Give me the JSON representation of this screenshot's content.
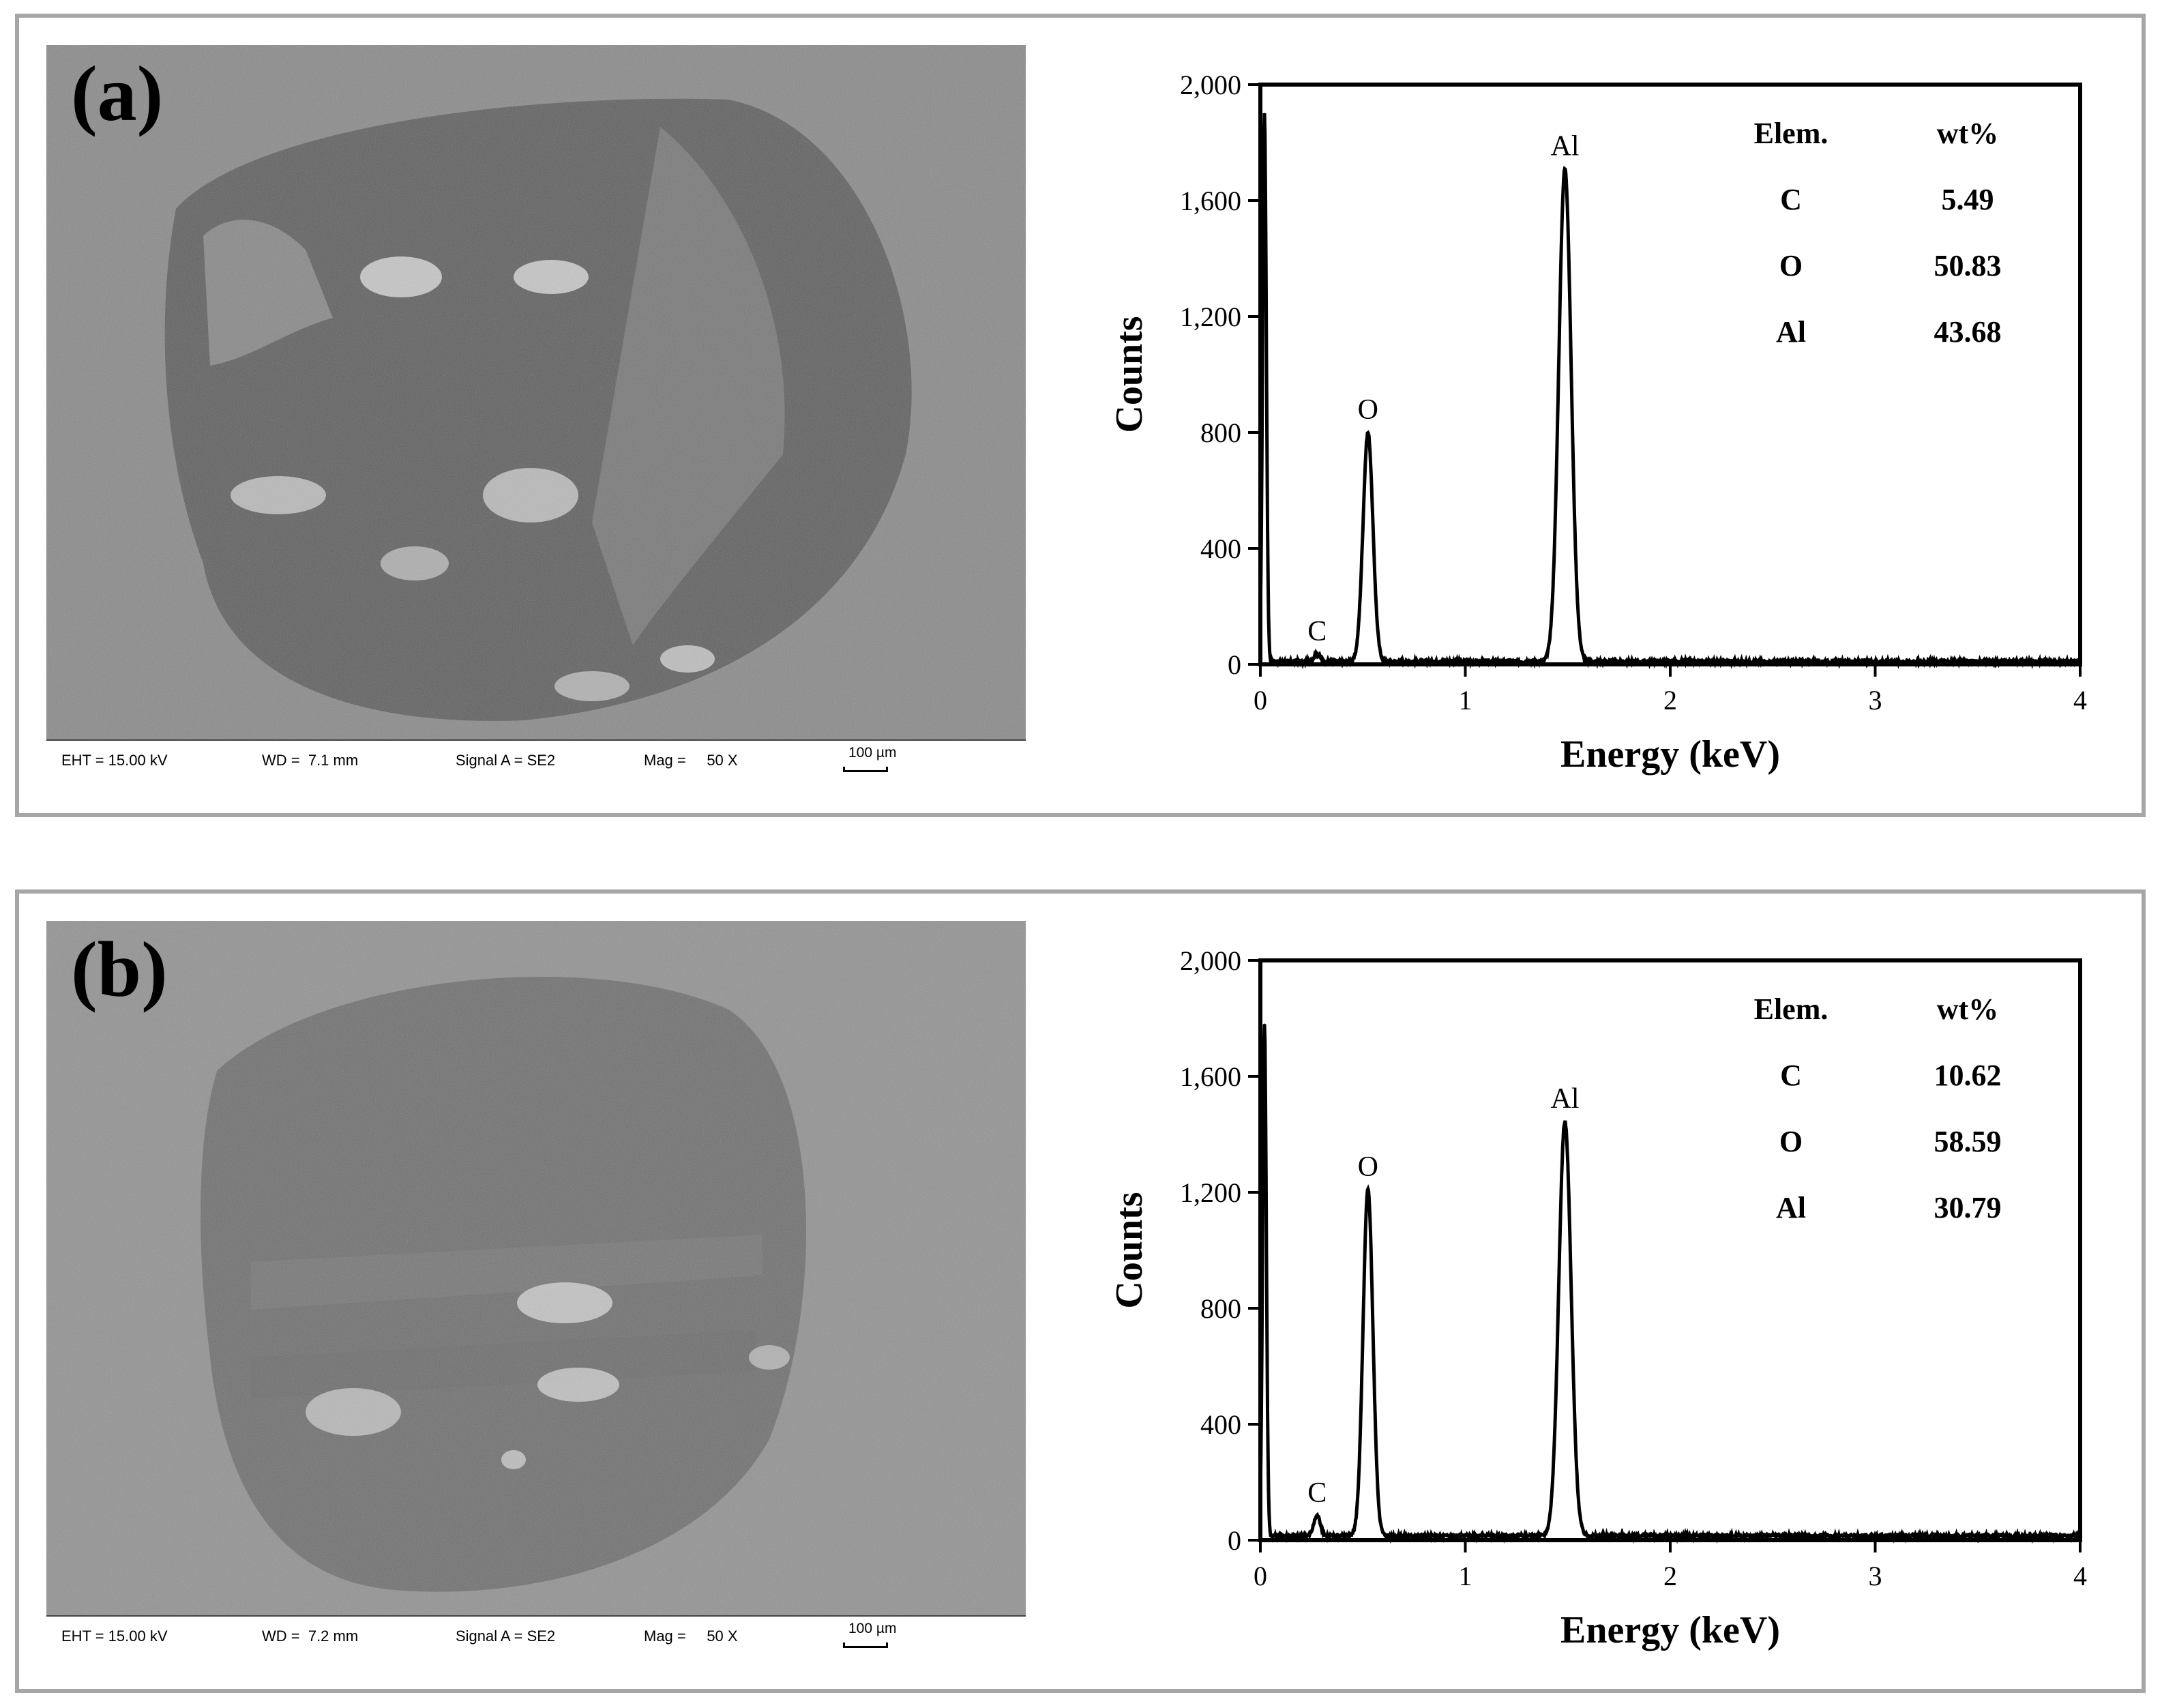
{
  "panels": [
    {
      "label": "(a)",
      "sem": {
        "eht": "EHT = 15.00 kV",
        "wd": "WD =  7.1 mm",
        "signal": "Signal A = SE2",
        "mag": "Mag =     50 X",
        "scale": "100 µm"
      }
    },
    {
      "label": "(b)",
      "sem": {
        "eht": "EHT = 15.00 kV",
        "wd": "WD =  7.2 mm",
        "signal": "Signal A = SE2",
        "mag": "Mag =     50 X",
        "scale": "100 µm"
      }
    }
  ],
  "chart_data": [
    {
      "type": "line",
      "xlabel": "Energy (keV)",
      "ylabel": "Counts",
      "xlim": [
        0,
        4
      ],
      "ylim": [
        0,
        2000
      ],
      "xticks": [
        0,
        1,
        2,
        3,
        4
      ],
      "yticks": [
        0,
        400,
        800,
        1200,
        1600,
        2000
      ],
      "ytick_labels": [
        "0",
        "400",
        "800",
        "1,200",
        "1,600",
        "2,000"
      ],
      "baseline": 10,
      "peaks": [
        {
          "label": "",
          "x": 0.02,
          "y": 1900
        },
        {
          "label": "C",
          "x": 0.277,
          "y": 35
        },
        {
          "label": "O",
          "x": 0.525,
          "y": 800
        },
        {
          "label": "Al",
          "x": 1.486,
          "y": 1710
        }
      ],
      "table": {
        "headers": [
          "Elem.",
          "wt%"
        ],
        "rows": [
          [
            "C",
            "5.49"
          ],
          [
            "O",
            "50.83"
          ],
          [
            "Al",
            "43.68"
          ]
        ]
      }
    },
    {
      "type": "line",
      "xlabel": "Energy (keV)",
      "ylabel": "Counts",
      "xlim": [
        0,
        4
      ],
      "ylim": [
        0,
        2000
      ],
      "xticks": [
        0,
        1,
        2,
        3,
        4
      ],
      "yticks": [
        0,
        400,
        800,
        1200,
        1600,
        2000
      ],
      "ytick_labels": [
        "0",
        "400",
        "800",
        "1,200",
        "1,600",
        "2,000"
      ],
      "baseline": 15,
      "peaks": [
        {
          "label": "",
          "x": 0.02,
          "y": 1780
        },
        {
          "label": "C",
          "x": 0.277,
          "y": 85
        },
        {
          "label": "O",
          "x": 0.525,
          "y": 1210
        },
        {
          "label": "Al",
          "x": 1.486,
          "y": 1445
        }
      ],
      "table": {
        "headers": [
          "Elem.",
          "wt%"
        ],
        "rows": [
          [
            "C",
            "10.62"
          ],
          [
            "O",
            "58.59"
          ],
          [
            "Al",
            "30.79"
          ]
        ]
      }
    }
  ]
}
